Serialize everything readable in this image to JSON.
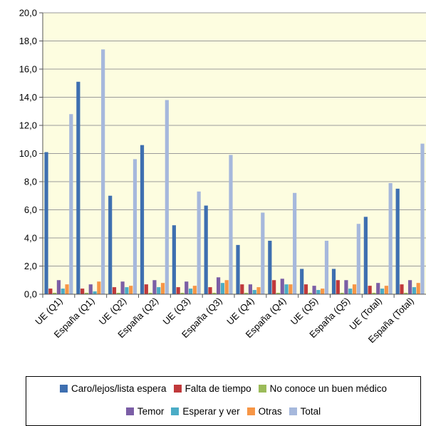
{
  "chart_data": {
    "type": "bar",
    "title": "",
    "xlabel": "",
    "ylabel": "",
    "ylim": [
      0,
      20
    ],
    "yticks": [
      "0,0",
      "2,0",
      "4,0",
      "6,0",
      "8,0",
      "10,0",
      "12,0",
      "14,0",
      "16,0",
      "18,0",
      "20,0"
    ],
    "grid": "horizontal",
    "legend_position": "bottom",
    "plot_background": "#fdfde0",
    "categories": [
      "UE (Q1)",
      "España (Q1)",
      "UE (Q2)",
      "España (Q2)",
      "UE (Q3)",
      "España (Q3)",
      "UE (Q4)",
      "España (Q4)",
      "UE (Q5)",
      "España (Q5)",
      "UE (Total)",
      "España (Total)"
    ],
    "series": [
      {
        "name": "Caro/lejos/lista espera",
        "color": "#3e6fb0",
        "values": [
          10.1,
          15.1,
          7.0,
          10.6,
          4.9,
          6.3,
          3.5,
          3.8,
          1.8,
          1.8,
          5.5,
          7.5
        ]
      },
      {
        "name": "Falta de tiempo",
        "color": "#c0393b",
        "values": [
          0.4,
          0.4,
          0.5,
          0.7,
          0.5,
          0.5,
          0.7,
          1.0,
          0.7,
          1.0,
          0.6,
          0.7
        ]
      },
      {
        "name": "No conoce un buen médico",
        "color": "#9bbb59",
        "values": [
          0.1,
          0.1,
          0.1,
          0.1,
          0.1,
          0.1,
          0.1,
          0.1,
          0.1,
          0.1,
          0.1,
          0.1
        ]
      },
      {
        "name": "Temor",
        "color": "#7b5ea6",
        "values": [
          1.0,
          0.7,
          0.9,
          1.0,
          0.9,
          1.2,
          0.7,
          1.1,
          0.6,
          1.0,
          0.8,
          1.0
        ]
      },
      {
        "name": "Esperar y ver",
        "color": "#4bacc6",
        "values": [
          0.4,
          0.2,
          0.5,
          0.5,
          0.4,
          0.8,
          0.3,
          0.7,
          0.3,
          0.4,
          0.4,
          0.5
        ]
      },
      {
        "name": "Otras",
        "color": "#f79646",
        "values": [
          0.7,
          0.9,
          0.6,
          0.8,
          0.6,
          1.0,
          0.5,
          0.7,
          0.4,
          0.7,
          0.6,
          0.8
        ]
      },
      {
        "name": "Total",
        "color": "#a6b8dc",
        "values": [
          12.8,
          17.4,
          9.6,
          13.8,
          7.3,
          9.9,
          5.8,
          7.2,
          3.8,
          5.0,
          7.9,
          10.7
        ]
      }
    ],
    "legend_rows": [
      [
        0,
        1,
        2
      ],
      [
        3,
        4,
        5,
        6
      ]
    ]
  }
}
